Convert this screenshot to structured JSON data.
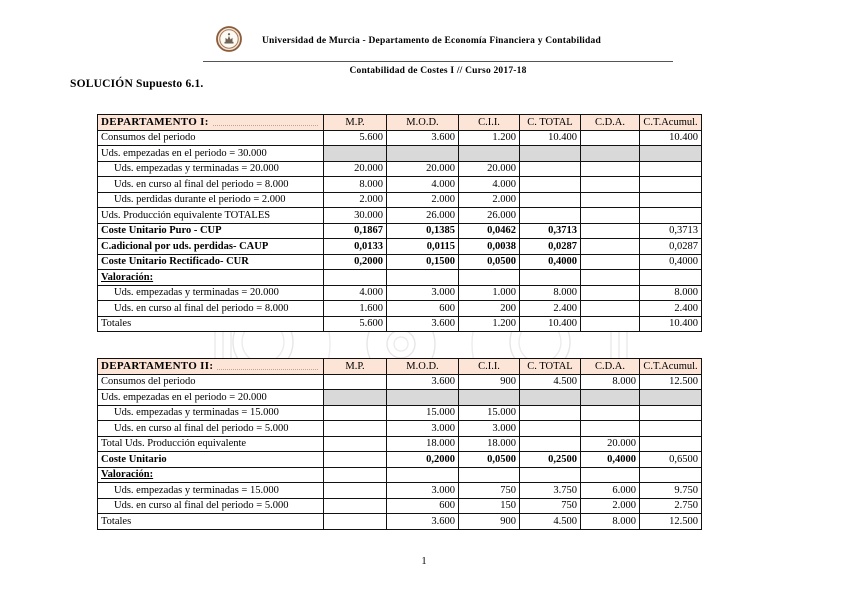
{
  "page": {
    "org_line": "Universidad de Murcia - Departamento de Economía Financiera y Contabilidad",
    "course_line": "Contabilidad de Costes I // Curso 2017-18",
    "doc_title": "SOLUCIÓN Supuesto 6.1.",
    "page_number": "1"
  },
  "icons": {
    "logo": "university-of-murcia-seal",
    "watermark": "faint-university-seal-lineart"
  },
  "colors": {
    "table_header_bg": "#fce4d6",
    "shaded_cell_bg": "#d9d9d9",
    "border": "#111111",
    "seal_brown": "#8a5c3c"
  },
  "columns": [
    "M.P.",
    "M.O.D.",
    "C.I.I.",
    "C. TOTAL",
    "C.D.A.",
    "C.T.Acumul."
  ],
  "tables": [
    {
      "title": "DEPARTAMENTO I:",
      "rows": [
        {
          "label": "Consumos del periodo",
          "style": "normal",
          "values": [
            "5.600",
            "3.600",
            "1.200",
            "10.400",
            "",
            "10.400"
          ]
        },
        {
          "label": "Uds. empezadas en el periodo = 30.000",
          "style": "gray",
          "values": [
            "",
            "",
            "",
            "",
            "",
            ""
          ]
        },
        {
          "label": "Uds. empezadas y terminadas = 20.000",
          "style": "indent",
          "values": [
            "20.000",
            "20.000",
            "20.000",
            "",
            "",
            ""
          ]
        },
        {
          "label": "Uds. en curso al final del periodo = 8.000",
          "style": "indent",
          "values": [
            "8.000",
            "4.000",
            "4.000",
            "",
            "",
            ""
          ]
        },
        {
          "label": "Uds. perdidas durante el periodo = 2.000",
          "style": "indent",
          "values": [
            "2.000",
            "2.000",
            "2.000",
            "",
            "",
            ""
          ]
        },
        {
          "label": "Uds. Producción equivalente TOTALES",
          "style": "normal",
          "values": [
            "30.000",
            "26.000",
            "26.000",
            "",
            "",
            ""
          ]
        },
        {
          "label": "Coste Unitario Puro - CUP",
          "style": "bold",
          "values": [
            "0,1867",
            "0,1385",
            "0,0462",
            "0,3713",
            "",
            "0,3713"
          ]
        },
        {
          "label": "C.adicional por uds. perdidas- CAUP",
          "style": "bold",
          "values": [
            "0,0133",
            "0,0115",
            "0,0038",
            "0,0287",
            "",
            "0,0287"
          ]
        },
        {
          "label": "Coste Unitario Rectificado- CUR",
          "style": "bold",
          "values": [
            "0,2000",
            "0,1500",
            "0,0500",
            "0,4000",
            "",
            "0,4000"
          ]
        },
        {
          "label": "Valoración:",
          "style": "section",
          "values": [
            "",
            "",
            "",
            "",
            "",
            ""
          ]
        },
        {
          "label": "Uds. empezadas y terminadas = 20.000",
          "style": "indent",
          "values": [
            "4.000",
            "3.000",
            "1.000",
            "8.000",
            "",
            "8.000"
          ]
        },
        {
          "label": "Uds. en curso al final del periodo = 8.000",
          "style": "indent",
          "values": [
            "1.600",
            "600",
            "200",
            "2.400",
            "",
            "2.400"
          ]
        },
        {
          "label": "Totales",
          "style": "normal",
          "values": [
            "5.600",
            "3.600",
            "1.200",
            "10.400",
            "",
            "10.400"
          ]
        }
      ]
    },
    {
      "title": "DEPARTAMENTO II:",
      "rows": [
        {
          "label": "Consumos del periodo",
          "style": "normal",
          "values": [
            "",
            "3.600",
            "900",
            "4.500",
            "8.000",
            "12.500"
          ]
        },
        {
          "label": "Uds. empezadas en el periodo = 20.000",
          "style": "gray",
          "values": [
            "",
            "",
            "",
            "",
            "",
            ""
          ]
        },
        {
          "label": "Uds. empezadas y terminadas = 15.000",
          "style": "indent",
          "values": [
            "",
            "15.000",
            "15.000",
            "",
            "",
            ""
          ]
        },
        {
          "label": "Uds. en curso al final del periodo = 5.000",
          "style": "indent",
          "values": [
            "",
            "3.000",
            "3.000",
            "",
            "",
            ""
          ]
        },
        {
          "label": "Total Uds. Producción equivalente",
          "style": "normal",
          "values": [
            "",
            "18.000",
            "18.000",
            "",
            "20.000",
            ""
          ]
        },
        {
          "label": "Coste Unitario",
          "style": "bold",
          "values": [
            "",
            "0,2000",
            "0,0500",
            "0,2500",
            "0,4000",
            "0,6500"
          ]
        },
        {
          "label": "Valoración:",
          "style": "section",
          "values": [
            "",
            "",
            "",
            "",
            "",
            ""
          ]
        },
        {
          "label": "Uds. empezadas y terminadas = 15.000",
          "style": "indent",
          "values": [
            "",
            "3.000",
            "750",
            "3.750",
            "6.000",
            "9.750"
          ]
        },
        {
          "label": "Uds. en curso al final del periodo = 5.000",
          "style": "indent",
          "values": [
            "",
            "600",
            "150",
            "750",
            "2.000",
            "2.750"
          ]
        },
        {
          "label": "Totales",
          "style": "normal",
          "values": [
            "",
            "3.600",
            "900",
            "4.500",
            "8.000",
            "12.500"
          ]
        }
      ]
    }
  ]
}
